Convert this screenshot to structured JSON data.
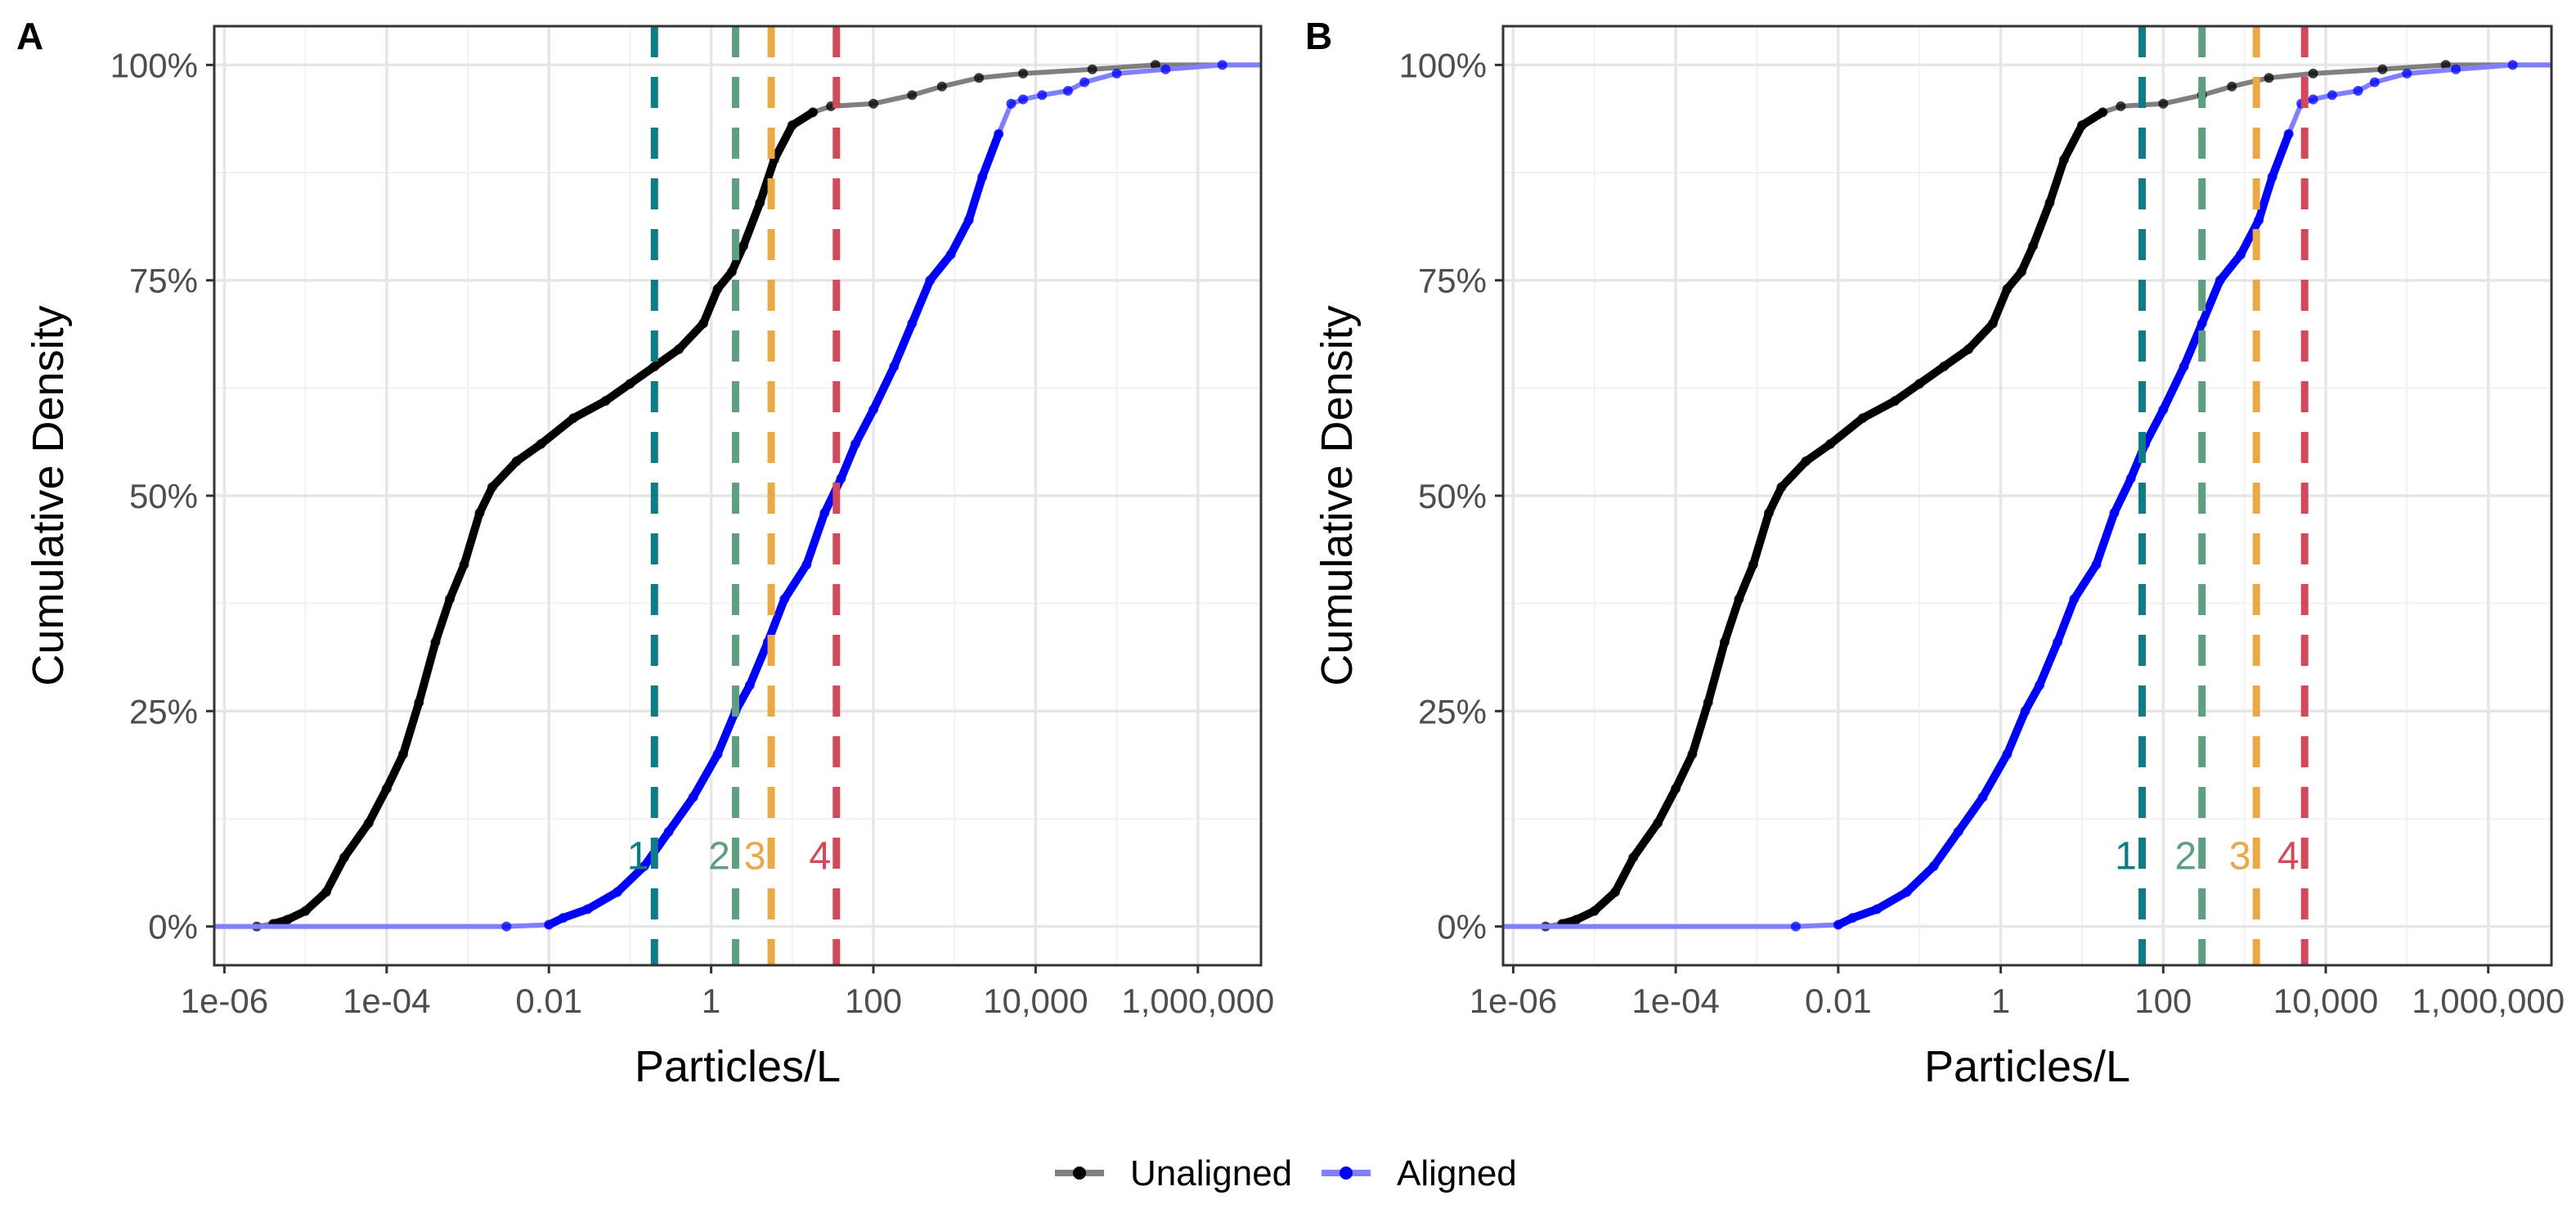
{
  "legend": {
    "placement": "bottom",
    "items": [
      {
        "label": "Unaligned",
        "color": "#000000",
        "line_color": "#7f7f7f"
      },
      {
        "label": "Aligned",
        "color": "#0000ff",
        "line_color": "#8080ff"
      }
    ]
  },
  "chart_data": [
    {
      "panel": "A",
      "type": "line",
      "xlabel": "Particles/L",
      "ylabel": "Cumulative Density",
      "x_scale": "log10",
      "xlim": [
        7.5e-07,
        6000000
      ],
      "ylim": [
        -0.045,
        1.045
      ],
      "x_ticks": [
        1e-06,
        0.0001,
        0.01,
        1,
        100,
        10000,
        1000000
      ],
      "x_tick_labels": [
        "1e-06",
        "1e-04",
        "0.01",
        "1",
        "100",
        "10,000",
        "1,000,000"
      ],
      "y_ticks": [
        0,
        0.25,
        0.5,
        0.75,
        1
      ],
      "y_tick_labels": [
        "0%",
        "25%",
        "50%",
        "75%",
        "100%"
      ],
      "grid": true,
      "reference_lines": [
        {
          "label": "1",
          "x": 0.2,
          "color": "#0f7b85"
        },
        {
          "label": "2",
          "x": 2.0,
          "color": "#5f9e7f"
        },
        {
          "label": "3",
          "x": 5.5,
          "color": "#eaa944"
        },
        {
          "label": "4",
          "x": 35,
          "color": "#d1495b"
        }
      ],
      "series": [
        {
          "name": "Unaligned",
          "color": "#000000",
          "points": [
            [
              2.5e-06,
              0.0
            ],
            [
              4e-06,
              0.003
            ],
            [
              6e-06,
              0.008
            ],
            [
              1e-05,
              0.018
            ],
            [
              1.8e-05,
              0.04
            ],
            [
              3e-05,
              0.08
            ],
            [
              6e-05,
              0.12
            ],
            [
              0.0001,
              0.16
            ],
            [
              0.00016,
              0.2
            ],
            [
              0.00025,
              0.26
            ],
            [
              0.0004,
              0.33
            ],
            [
              0.0006,
              0.38
            ],
            [
              0.0009,
              0.42
            ],
            [
              0.0014,
              0.48
            ],
            [
              0.002,
              0.51
            ],
            [
              0.004,
              0.54
            ],
            [
              0.008,
              0.56
            ],
            [
              0.02,
              0.59
            ],
            [
              0.05,
              0.61
            ],
            [
              0.1,
              0.63
            ],
            [
              0.2,
              0.65
            ],
            [
              0.4,
              0.67
            ],
            [
              0.8,
              0.7
            ],
            [
              1.2,
              0.74
            ],
            [
              1.8,
              0.76
            ],
            [
              2.5,
              0.79
            ],
            [
              4,
              0.84
            ],
            [
              6,
              0.89
            ],
            [
              10,
              0.93
            ],
            [
              18,
              0.945
            ],
            [
              30,
              0.952
            ],
            [
              100,
              0.955
            ],
            [
              300,
              0.965
            ],
            [
              700,
              0.975
            ],
            [
              2000,
              0.985
            ],
            [
              7000,
              0.99
            ],
            [
              50000,
              0.995
            ],
            [
              300000,
              1.0
            ],
            [
              6000000,
              1.0
            ]
          ]
        },
        {
          "name": "Aligned",
          "color": "#0000ff",
          "points": [
            [
              7.5e-07,
              0.0
            ],
            [
              0.003,
              0.0
            ],
            [
              0.01,
              0.002
            ],
            [
              0.015,
              0.01
            ],
            [
              0.03,
              0.02
            ],
            [
              0.07,
              0.04
            ],
            [
              0.15,
              0.07
            ],
            [
              0.3,
              0.11
            ],
            [
              0.6,
              0.15
            ],
            [
              1.2,
              0.2
            ],
            [
              2,
              0.25
            ],
            [
              3,
              0.28
            ],
            [
              5,
              0.33
            ],
            [
              8,
              0.38
            ],
            [
              15,
              0.42
            ],
            [
              25,
              0.48
            ],
            [
              40,
              0.52
            ],
            [
              60,
              0.56
            ],
            [
              100,
              0.6
            ],
            [
              180,
              0.65
            ],
            [
              300,
              0.7
            ],
            [
              500,
              0.75
            ],
            [
              900,
              0.78
            ],
            [
              1500,
              0.82
            ],
            [
              2200,
              0.87
            ],
            [
              3500,
              0.92
            ],
            [
              5000,
              0.955
            ],
            [
              7000,
              0.96
            ],
            [
              12000,
              0.965
            ],
            [
              25000,
              0.97
            ],
            [
              40000,
              0.98
            ],
            [
              100000,
              0.99
            ],
            [
              400000,
              0.995
            ],
            [
              2000000,
              1.0
            ],
            [
              6000000,
              1.0
            ]
          ]
        }
      ]
    },
    {
      "panel": "B",
      "type": "line",
      "xlabel": "Particles/L",
      "ylabel": "Cumulative Density",
      "x_scale": "log10",
      "xlim": [
        7.5e-07,
        6000000
      ],
      "ylim": [
        -0.045,
        1.045
      ],
      "x_ticks": [
        1e-06,
        0.0001,
        0.01,
        1,
        100,
        10000,
        1000000
      ],
      "x_tick_labels": [
        "1e-06",
        "1e-04",
        "0.01",
        "1",
        "100",
        "10,000",
        "1,000,000"
      ],
      "y_ticks": [
        0,
        0.25,
        0.5,
        0.75,
        1
      ],
      "y_tick_labels": [
        "0%",
        "25%",
        "50%",
        "75%",
        "100%"
      ],
      "grid": true,
      "reference_lines": [
        {
          "label": "1",
          "x": 55,
          "color": "#0f7b85"
        },
        {
          "label": "2",
          "x": 300,
          "color": "#5f9e7f"
        },
        {
          "label": "3",
          "x": 1400,
          "color": "#eaa944"
        },
        {
          "label": "4",
          "x": 5500,
          "color": "#d1495b"
        }
      ],
      "series": [
        {
          "name": "Unaligned",
          "color": "#000000",
          "points": [
            [
              2.5e-06,
              0.0
            ],
            [
              4e-06,
              0.003
            ],
            [
              6e-06,
              0.008
            ],
            [
              1e-05,
              0.018
            ],
            [
              1.8e-05,
              0.04
            ],
            [
              3e-05,
              0.08
            ],
            [
              6e-05,
              0.12
            ],
            [
              0.0001,
              0.16
            ],
            [
              0.00016,
              0.2
            ],
            [
              0.00025,
              0.26
            ],
            [
              0.0004,
              0.33
            ],
            [
              0.0006,
              0.38
            ],
            [
              0.0009,
              0.42
            ],
            [
              0.0014,
              0.48
            ],
            [
              0.002,
              0.51
            ],
            [
              0.004,
              0.54
            ],
            [
              0.008,
              0.56
            ],
            [
              0.02,
              0.59
            ],
            [
              0.05,
              0.61
            ],
            [
              0.1,
              0.63
            ],
            [
              0.2,
              0.65
            ],
            [
              0.4,
              0.67
            ],
            [
              0.8,
              0.7
            ],
            [
              1.2,
              0.74
            ],
            [
              1.8,
              0.76
            ],
            [
              2.5,
              0.79
            ],
            [
              4,
              0.84
            ],
            [
              6,
              0.89
            ],
            [
              10,
              0.93
            ],
            [
              18,
              0.945
            ],
            [
              30,
              0.952
            ],
            [
              100,
              0.955
            ],
            [
              300,
              0.965
            ],
            [
              700,
              0.975
            ],
            [
              2000,
              0.985
            ],
            [
              7000,
              0.99
            ],
            [
              50000,
              0.995
            ],
            [
              300000,
              1.0
            ],
            [
              6000000,
              1.0
            ]
          ]
        },
        {
          "name": "Aligned",
          "color": "#0000ff",
          "points": [
            [
              7.5e-07,
              0.0
            ],
            [
              0.003,
              0.0
            ],
            [
              0.01,
              0.002
            ],
            [
              0.015,
              0.01
            ],
            [
              0.03,
              0.02
            ],
            [
              0.07,
              0.04
            ],
            [
              0.15,
              0.07
            ],
            [
              0.3,
              0.11
            ],
            [
              0.6,
              0.15
            ],
            [
              1.2,
              0.2
            ],
            [
              2,
              0.25
            ],
            [
              3,
              0.28
            ],
            [
              5,
              0.33
            ],
            [
              8,
              0.38
            ],
            [
              15,
              0.42
            ],
            [
              25,
              0.48
            ],
            [
              40,
              0.52
            ],
            [
              60,
              0.56
            ],
            [
              100,
              0.6
            ],
            [
              180,
              0.65
            ],
            [
              300,
              0.7
            ],
            [
              500,
              0.75
            ],
            [
              900,
              0.78
            ],
            [
              1500,
              0.82
            ],
            [
              2200,
              0.87
            ],
            [
              3500,
              0.92
            ],
            [
              5000,
              0.955
            ],
            [
              7000,
              0.96
            ],
            [
              12000,
              0.965
            ],
            [
              25000,
              0.97
            ],
            [
              40000,
              0.98
            ],
            [
              100000,
              0.99
            ],
            [
              400000,
              0.995
            ],
            [
              2000000,
              1.0
            ],
            [
              6000000,
              1.0
            ]
          ]
        }
      ]
    }
  ]
}
